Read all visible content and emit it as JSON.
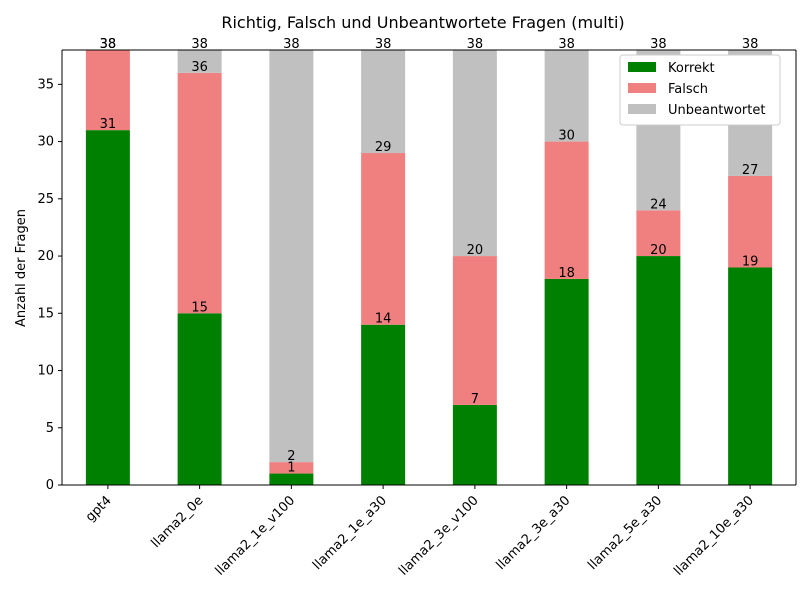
{
  "chart_data": {
    "type": "bar",
    "stacked": true,
    "title": "Richtig, Falsch und Unbeantwortete Fragen (multi)",
    "xlabel": "",
    "ylabel": "Anzahl der Fragen",
    "ylim": [
      0,
      38
    ],
    "yticks": [
      0,
      5,
      10,
      15,
      20,
      25,
      30,
      35
    ],
    "categories": [
      "gpt4",
      "llama2_0e",
      "llama2_1e_v100",
      "llama2_1e_a30",
      "llama2_3e_v100",
      "llama2_3e_a30",
      "llama2_5e_a30",
      "llama2_10e_a30"
    ],
    "series": [
      {
        "name": "Korrekt",
        "color": "#008000",
        "values": [
          31,
          15,
          1,
          14,
          7,
          18,
          20,
          19
        ]
      },
      {
        "name": "Falsch",
        "color": "#f08080",
        "values": [
          7,
          21,
          1,
          15,
          13,
          12,
          4,
          8
        ]
      },
      {
        "name": "Unbeantwortet",
        "color": "#c0c0c0",
        "values": [
          0,
          2,
          36,
          9,
          18,
          8,
          14,
          11
        ]
      }
    ],
    "cumulative_labels": [
      [
        31,
        15,
        1,
        14,
        7,
        18,
        20,
        19
      ],
      [
        38,
        36,
        2,
        29,
        20,
        30,
        24,
        27
      ],
      [
        38,
        38,
        38,
        38,
        38,
        38,
        38,
        38
      ]
    ],
    "legend": {
      "position": "top-right",
      "entries": [
        "Korrekt",
        "Falsch",
        "Unbeantwortet"
      ]
    },
    "grid": false
  }
}
